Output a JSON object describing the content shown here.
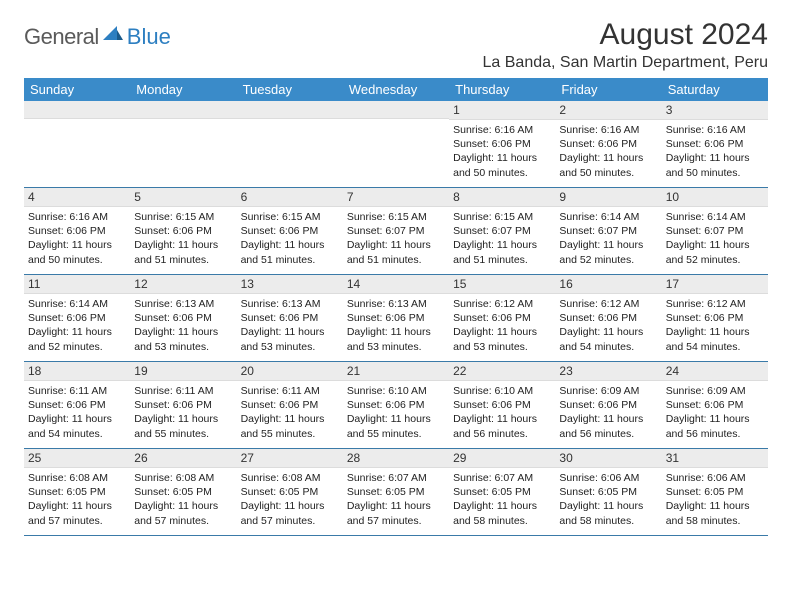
{
  "logo": {
    "text1": "General",
    "text2": "Blue"
  },
  "title": "August 2024",
  "location": "La Banda, San Martin Department, Peru",
  "colors": {
    "header_bg": "#3a8bc9",
    "header_text": "#ffffff",
    "row_border": "#3a7aa8",
    "daynum_bg": "#ececec",
    "logo_gray": "#5a5a5a",
    "logo_blue": "#2d7fc1"
  },
  "day_headers": [
    "Sunday",
    "Monday",
    "Tuesday",
    "Wednesday",
    "Thursday",
    "Friday",
    "Saturday"
  ],
  "weeks": [
    [
      null,
      null,
      null,
      null,
      {
        "n": "1",
        "sunrise": "6:16 AM",
        "sunset": "6:06 PM",
        "daylight": "11 hours and 50 minutes."
      },
      {
        "n": "2",
        "sunrise": "6:16 AM",
        "sunset": "6:06 PM",
        "daylight": "11 hours and 50 minutes."
      },
      {
        "n": "3",
        "sunrise": "6:16 AM",
        "sunset": "6:06 PM",
        "daylight": "11 hours and 50 minutes."
      }
    ],
    [
      {
        "n": "4",
        "sunrise": "6:16 AM",
        "sunset": "6:06 PM",
        "daylight": "11 hours and 50 minutes."
      },
      {
        "n": "5",
        "sunrise": "6:15 AM",
        "sunset": "6:06 PM",
        "daylight": "11 hours and 51 minutes."
      },
      {
        "n": "6",
        "sunrise": "6:15 AM",
        "sunset": "6:06 PM",
        "daylight": "11 hours and 51 minutes."
      },
      {
        "n": "7",
        "sunrise": "6:15 AM",
        "sunset": "6:07 PM",
        "daylight": "11 hours and 51 minutes."
      },
      {
        "n": "8",
        "sunrise": "6:15 AM",
        "sunset": "6:07 PM",
        "daylight": "11 hours and 51 minutes."
      },
      {
        "n": "9",
        "sunrise": "6:14 AM",
        "sunset": "6:07 PM",
        "daylight": "11 hours and 52 minutes."
      },
      {
        "n": "10",
        "sunrise": "6:14 AM",
        "sunset": "6:07 PM",
        "daylight": "11 hours and 52 minutes."
      }
    ],
    [
      {
        "n": "11",
        "sunrise": "6:14 AM",
        "sunset": "6:06 PM",
        "daylight": "11 hours and 52 minutes."
      },
      {
        "n": "12",
        "sunrise": "6:13 AM",
        "sunset": "6:06 PM",
        "daylight": "11 hours and 53 minutes."
      },
      {
        "n": "13",
        "sunrise": "6:13 AM",
        "sunset": "6:06 PM",
        "daylight": "11 hours and 53 minutes."
      },
      {
        "n": "14",
        "sunrise": "6:13 AM",
        "sunset": "6:06 PM",
        "daylight": "11 hours and 53 minutes."
      },
      {
        "n": "15",
        "sunrise": "6:12 AM",
        "sunset": "6:06 PM",
        "daylight": "11 hours and 53 minutes."
      },
      {
        "n": "16",
        "sunrise": "6:12 AM",
        "sunset": "6:06 PM",
        "daylight": "11 hours and 54 minutes."
      },
      {
        "n": "17",
        "sunrise": "6:12 AM",
        "sunset": "6:06 PM",
        "daylight": "11 hours and 54 minutes."
      }
    ],
    [
      {
        "n": "18",
        "sunrise": "6:11 AM",
        "sunset": "6:06 PM",
        "daylight": "11 hours and 54 minutes."
      },
      {
        "n": "19",
        "sunrise": "6:11 AM",
        "sunset": "6:06 PM",
        "daylight": "11 hours and 55 minutes."
      },
      {
        "n": "20",
        "sunrise": "6:11 AM",
        "sunset": "6:06 PM",
        "daylight": "11 hours and 55 minutes."
      },
      {
        "n": "21",
        "sunrise": "6:10 AM",
        "sunset": "6:06 PM",
        "daylight": "11 hours and 55 minutes."
      },
      {
        "n": "22",
        "sunrise": "6:10 AM",
        "sunset": "6:06 PM",
        "daylight": "11 hours and 56 minutes."
      },
      {
        "n": "23",
        "sunrise": "6:09 AM",
        "sunset": "6:06 PM",
        "daylight": "11 hours and 56 minutes."
      },
      {
        "n": "24",
        "sunrise": "6:09 AM",
        "sunset": "6:06 PM",
        "daylight": "11 hours and 56 minutes."
      }
    ],
    [
      {
        "n": "25",
        "sunrise": "6:08 AM",
        "sunset": "6:05 PM",
        "daylight": "11 hours and 57 minutes."
      },
      {
        "n": "26",
        "sunrise": "6:08 AM",
        "sunset": "6:05 PM",
        "daylight": "11 hours and 57 minutes."
      },
      {
        "n": "27",
        "sunrise": "6:08 AM",
        "sunset": "6:05 PM",
        "daylight": "11 hours and 57 minutes."
      },
      {
        "n": "28",
        "sunrise": "6:07 AM",
        "sunset": "6:05 PM",
        "daylight": "11 hours and 57 minutes."
      },
      {
        "n": "29",
        "sunrise": "6:07 AM",
        "sunset": "6:05 PM",
        "daylight": "11 hours and 58 minutes."
      },
      {
        "n": "30",
        "sunrise": "6:06 AM",
        "sunset": "6:05 PM",
        "daylight": "11 hours and 58 minutes."
      },
      {
        "n": "31",
        "sunrise": "6:06 AM",
        "sunset": "6:05 PM",
        "daylight": "11 hours and 58 minutes."
      }
    ]
  ],
  "labels": {
    "sunrise": "Sunrise:",
    "sunset": "Sunset:",
    "daylight": "Daylight:"
  }
}
